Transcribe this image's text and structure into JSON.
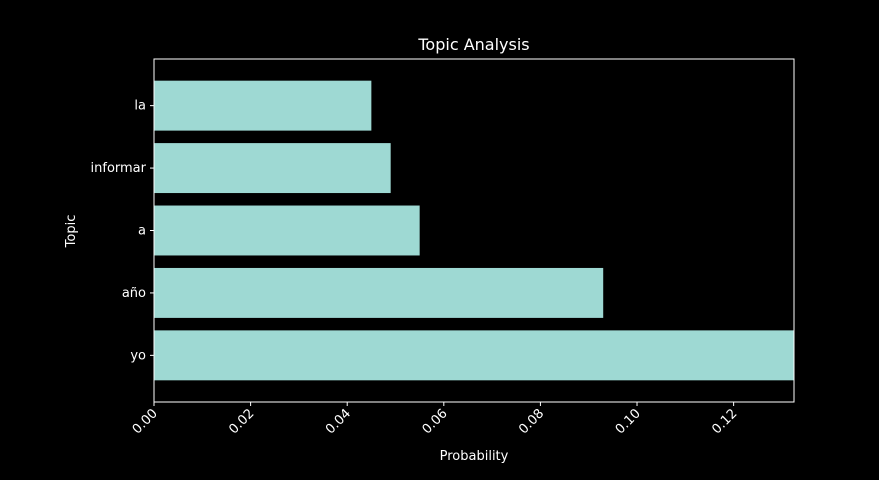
{
  "chart_data": {
    "type": "bar",
    "orientation": "horizontal",
    "title": "Topic Analysis",
    "xlabel": "Probability",
    "ylabel": "Topic",
    "categories": [
      "yo",
      "año",
      "a",
      "informar",
      "la"
    ],
    "values": [
      0.1325,
      0.093,
      0.055,
      0.049,
      0.045
    ],
    "xlim": [
      0,
      0.1325
    ],
    "xticks": [
      0.0,
      0.02,
      0.04,
      0.06,
      0.08,
      0.1,
      0.12
    ],
    "xtick_labels": [
      "0.00",
      "0.02",
      "0.04",
      "0.06",
      "0.08",
      "0.10",
      "0.12"
    ],
    "grid": false,
    "legend": "none",
    "colors": {
      "background": "#000000",
      "bar": "#9ed9d3",
      "axes": "#ffffff",
      "text": "#ffffff"
    }
  }
}
